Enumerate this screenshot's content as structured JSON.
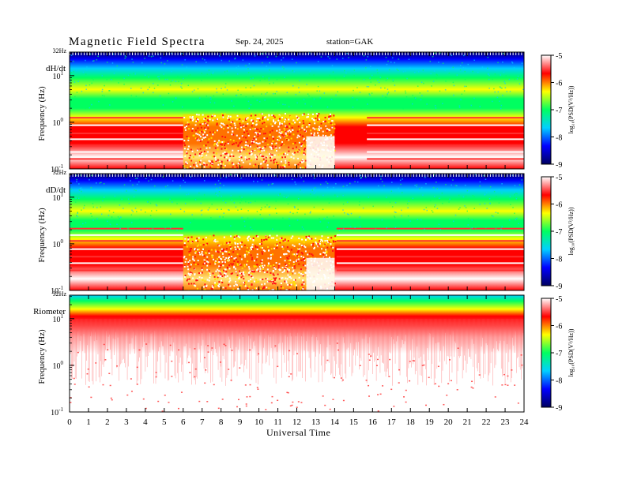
{
  "title": "Magnetic  Field  Spectra",
  "date": "Sep. 24, 2025",
  "station": "station=GAK",
  "x_axis_title": "Universal  Time",
  "colors": {
    "colormap": [
      "#000060",
      "#0000ff",
      "#00d0ff",
      "#00ff60",
      "#ffff00",
      "#ff0000",
      "#ffffff"
    ]
  },
  "chart_data": [
    {
      "type": "heatmap",
      "panel_label": "dH/dt",
      "ylabel": "Frequency  (Hz)",
      "top_label": "32Hz",
      "x_ticks": [
        "0",
        "1",
        "2",
        "3",
        "4",
        "5",
        "6",
        "7",
        "8",
        "9",
        "10",
        "11",
        "12",
        "13",
        "14",
        "15",
        "16",
        "17",
        "18",
        "19",
        "20",
        "21",
        "22",
        "23",
        "24"
      ],
      "xlim": [
        0,
        24
      ],
      "y_ticks": [
        {
          "base": "10",
          "exp": "1",
          "value": 10
        },
        {
          "base": "10",
          "exp": "0",
          "value": 1
        },
        {
          "base": "10",
          "exp": "-1",
          "value": 0.1
        }
      ],
      "ylim": [
        0.1,
        32
      ],
      "y_scale": "log",
      "colorbar": {
        "label": "log₁₀(PSD(V²/Hz))",
        "ticks": [
          "-5",
          "-6",
          "-7",
          "-8",
          "-9"
        ],
        "range": [
          -9,
          -5
        ]
      }
    },
    {
      "type": "heatmap",
      "panel_label": "dD/dt",
      "ylabel": "Frequency  (Hz)",
      "top_label": "32Hz",
      "x_ticks": [
        "0",
        "1",
        "2",
        "3",
        "4",
        "5",
        "6",
        "7",
        "8",
        "9",
        "10",
        "11",
        "12",
        "13",
        "14",
        "15",
        "16",
        "17",
        "18",
        "19",
        "20",
        "21",
        "22",
        "23",
        "24"
      ],
      "xlim": [
        0,
        24
      ],
      "y_ticks": [
        {
          "base": "10",
          "exp": "1",
          "value": 10
        },
        {
          "base": "10",
          "exp": "0",
          "value": 1
        },
        {
          "base": "10",
          "exp": "-1",
          "value": 0.1
        }
      ],
      "ylim": [
        0.1,
        32
      ],
      "y_scale": "log",
      "colorbar": {
        "label": "log₁₀(PSD(V²/Hz))",
        "ticks": [
          "-5",
          "-6",
          "-7",
          "-8",
          "-9"
        ],
        "range": [
          -9,
          -5
        ]
      }
    },
    {
      "type": "heatmap",
      "panel_label": "Riometer",
      "ylabel": "Frequency  (Hz)",
      "top_label": "32Hz",
      "x_ticks": [
        "0",
        "1",
        "2",
        "3",
        "4",
        "5",
        "6",
        "7",
        "8",
        "9",
        "10",
        "11",
        "12",
        "13",
        "14",
        "15",
        "16",
        "17",
        "18",
        "19",
        "20",
        "21",
        "22",
        "23",
        "24"
      ],
      "xlim": [
        0,
        24
      ],
      "y_ticks": [
        {
          "base": "10",
          "exp": "1",
          "value": 10
        },
        {
          "base": "10",
          "exp": "0",
          "value": 1
        },
        {
          "base": "10",
          "exp": "-1",
          "value": 0.1
        }
      ],
      "ylim": [
        0.1,
        32
      ],
      "y_scale": "log",
      "colorbar": {
        "label": "log₁₀(PSD(V²/Hz))",
        "ticks": [
          "-5",
          "-6",
          "-7",
          "-8",
          "-9"
        ],
        "range": [
          -9,
          -5
        ]
      }
    }
  ]
}
